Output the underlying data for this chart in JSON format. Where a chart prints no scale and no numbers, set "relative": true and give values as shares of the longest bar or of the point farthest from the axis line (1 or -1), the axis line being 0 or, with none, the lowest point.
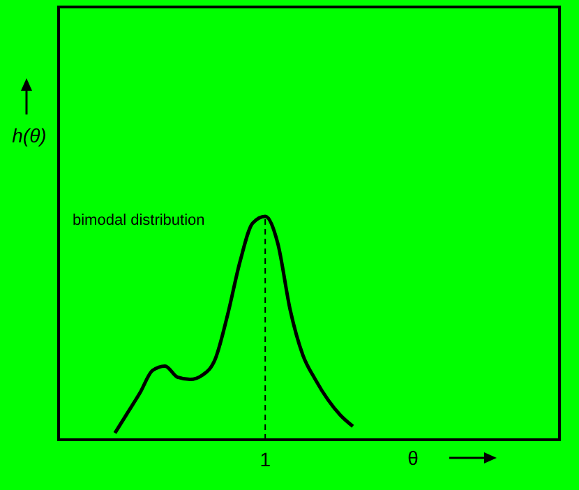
{
  "chart_data": {
    "type": "line",
    "relative": true,
    "ylabel": "h(θ)",
    "xlabel": "θ",
    "categories": [
      null,
      null,
      null,
      null,
      null,
      null,
      null,
      null,
      null,
      null,
      null,
      null,
      null,
      null,
      null,
      null,
      null,
      null,
      null,
      null,
      null,
      null,
      null,
      null,
      null,
      null,
      null,
      null,
      null,
      null,
      null,
      null,
      null,
      null,
      null,
      null,
      null,
      null,
      null,
      null
    ],
    "series": [
      {
        "color": "#000000",
        "values": [
          null,
          null,
          null,
          null,
          0.03,
          0.12,
          0.21,
          0.31,
          0.33,
          0.28,
          0.27,
          0.29,
          0.36,
          0.56,
          0.8,
          0.97,
          1,
          0.88,
          0.58,
          0.38,
          0.27,
          0.18,
          0.11,
          0.06,
          null,
          null,
          null,
          null,
          null,
          null,
          null,
          null,
          null,
          null,
          null,
          null,
          null,
          null,
          null,
          null
        ]
      }
    ],
    "annotations": [
      "bimodal distribution",
      "1"
    ],
    "marker": "none",
    "line_style": "solid"
  }
}
